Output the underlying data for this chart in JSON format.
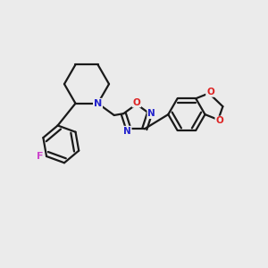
{
  "bg_color": "#ebebeb",
  "bond_color": "#1a1a1a",
  "N_color": "#2222cc",
  "O_color": "#dd2222",
  "F_color": "#cc44cc",
  "line_width": 1.6,
  "figsize": [
    3.0,
    3.0
  ],
  "dpi": 100,
  "xlim": [
    0,
    10
  ],
  "ylim": [
    0,
    10
  ]
}
